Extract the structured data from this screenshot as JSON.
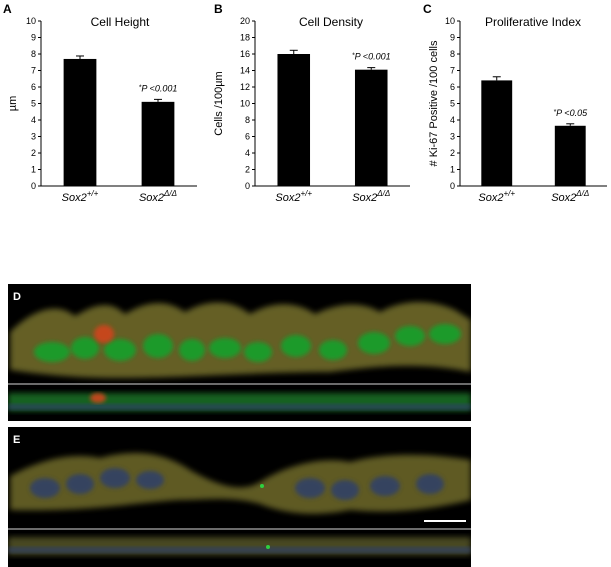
{
  "panels": [
    {
      "letter": "A"
    },
    {
      "letter": "B"
    },
    {
      "letter": "C"
    },
    {
      "letter": "D"
    },
    {
      "letter": "E"
    }
  ],
  "chart_data": [
    {
      "type": "bar",
      "title": "Cell Height",
      "ylabel": "µm",
      "xlabel": "",
      "categories": [
        {
          "base": "Sox2",
          "sup": "+/+"
        },
        {
          "base": "Sox2",
          "sup": "Δ/Δ"
        }
      ],
      "values": [
        7.7,
        5.1
      ],
      "errors": [
        0.18,
        0.15
      ],
      "ylim": [
        0,
        10
      ],
      "yticks": [
        0,
        1,
        2,
        3,
        4,
        5,
        6,
        7,
        8,
        9,
        10
      ],
      "annotation": {
        "star": "*",
        "text": "P <0.001",
        "index": 1
      },
      "bar_color": "#000000",
      "grid": false
    },
    {
      "type": "bar",
      "title": "Cell Density",
      "ylabel": "Cells /100µm",
      "xlabel": "",
      "categories": [
        {
          "base": "Sox2",
          "sup": "+/+"
        },
        {
          "base": "Sox2",
          "sup": "Δ/Δ"
        }
      ],
      "values": [
        16.0,
        14.1
      ],
      "errors": [
        0.45,
        0.25
      ],
      "ylim": [
        0,
        20
      ],
      "yticks": [
        0,
        2,
        4,
        6,
        8,
        10,
        12,
        14,
        16,
        18,
        20
      ],
      "annotation": {
        "star": "*",
        "text": "P <0.001",
        "index": 1
      },
      "bar_color": "#000000",
      "grid": false
    },
    {
      "type": "bar",
      "title": "Proliferative Index",
      "ylabel": "# Ki-67 Positive /100 cells",
      "xlabel": "",
      "categories": [
        {
          "base": "Sox2",
          "sup": "+/+"
        },
        {
          "base": "Sox2",
          "sup": "Δ/Δ"
        }
      ],
      "values": [
        6.4,
        3.65
      ],
      "errors": [
        0.22,
        0.12
      ],
      "ylim": [
        0,
        10
      ],
      "yticks": [
        0,
        1,
        2,
        3,
        4,
        5,
        6,
        7,
        8,
        9,
        10
      ],
      "annotation": {
        "star": "*",
        "text": "P <0.05",
        "index": 1
      },
      "bar_color": "#000000",
      "grid": false
    }
  ],
  "micrographs": {
    "colors": {
      "background": "#000000",
      "tissue": "#6f6a2c",
      "nuclei_green": "#1f9a2c",
      "nuclei_blue": "#2f3f6a",
      "red_signal": "#d0451a",
      "divider": "#d8d8d8",
      "scale_bar": "#ffffff"
    }
  }
}
